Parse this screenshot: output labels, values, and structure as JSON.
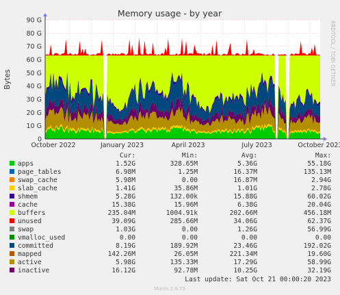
{
  "chart_data": {
    "type": "area",
    "title": "Memory usage - by year",
    "ylabel": "Bytes",
    "side_label": "RRDTOOL / TOBI OETIKER",
    "y_ticks": [
      "0",
      "10 G",
      "20 G",
      "30 G",
      "40 G",
      "50 G",
      "60 G",
      "70 G",
      "80 G",
      "90 G"
    ],
    "ylim": [
      0,
      90
    ],
    "y_unit": "G",
    "x_ticks": [
      {
        "label": "October 2022",
        "t": 0.03
      },
      {
        "label": "January 2023",
        "t": 0.28
      },
      {
        "label": "April 2023",
        "t": 0.52
      },
      {
        "label": "July 2023",
        "t": 0.77
      },
      {
        "label": "October 2023",
        "t": 1.0
      }
    ],
    "x_range": [
      "Oct 2022",
      "Oct 2023"
    ],
    "grid": true,
    "columns": {
      "cur": "Cur:",
      "min": "Min:",
      "avg": "Avg:",
      "max": "Max:"
    },
    "legend": [
      {
        "name": "apps",
        "color": "#00cc00",
        "cur": "1.52G",
        "min": "328.65M",
        "avg": "5.36G",
        "max": "55.18G"
      },
      {
        "name": "page_tables",
        "color": "#0066b3",
        "cur": "6.98M",
        "min": "1.25M",
        "avg": "16.37M",
        "max": "135.13M"
      },
      {
        "name": "swap_cache",
        "color": "#ff8000",
        "cur": "5.98M",
        "min": "0.00",
        "avg": "16.87M",
        "max": "2.94G"
      },
      {
        "name": "slab_cache",
        "color": "#ffcc00",
        "cur": "1.41G",
        "min": "35.86M",
        "avg": "1.01G",
        "max": "2.78G"
      },
      {
        "name": "shmem",
        "color": "#330099",
        "cur": "5.28G",
        "min": "132.00k",
        "avg": "15.88G",
        "max": "60.02G"
      },
      {
        "name": "cache",
        "color": "#990099",
        "cur": "15.38G",
        "min": "15.96M",
        "avg": "6.38G",
        "max": "20.04G"
      },
      {
        "name": "buffers",
        "color": "#ccff00",
        "cur": "235.04M",
        "min": "1004.91k",
        "avg": "202.66M",
        "max": "456.18M"
      },
      {
        "name": "unused",
        "color": "#ff0000",
        "cur": "39.09G",
        "min": "285.66M",
        "avg": "34.06G",
        "max": "62.37G"
      },
      {
        "name": "swap",
        "color": "#808080",
        "cur": "1.03G",
        "min": "0.00",
        "avg": "1.26G",
        "max": "56.99G"
      },
      {
        "name": "vmalloc_used",
        "color": "#008f00",
        "cur": "0.00",
        "min": "0.00",
        "avg": "0.00",
        "max": "0.00"
      },
      {
        "name": "committed",
        "color": "#00487d",
        "cur": "8.19G",
        "min": "189.92M",
        "avg": "23.46G",
        "max": "192.02G"
      },
      {
        "name": "mapped",
        "color": "#b35a00",
        "cur": "142.26M",
        "min": "26.05M",
        "avg": "221.34M",
        "max": "19.60G"
      },
      {
        "name": "active",
        "color": "#b38f00",
        "cur": "5.98G",
        "min": "135.33M",
        "avg": "17.29G",
        "max": "58.99G"
      },
      {
        "name": "inactive",
        "color": "#6b006b",
        "cur": "16.12G",
        "min": "92.78M",
        "avg": "10.25G",
        "max": "32.19G"
      }
    ],
    "last_update": "Last update: Sat Oct 21 00:00:20 2023",
    "footer": "Munin 2.0.73"
  }
}
